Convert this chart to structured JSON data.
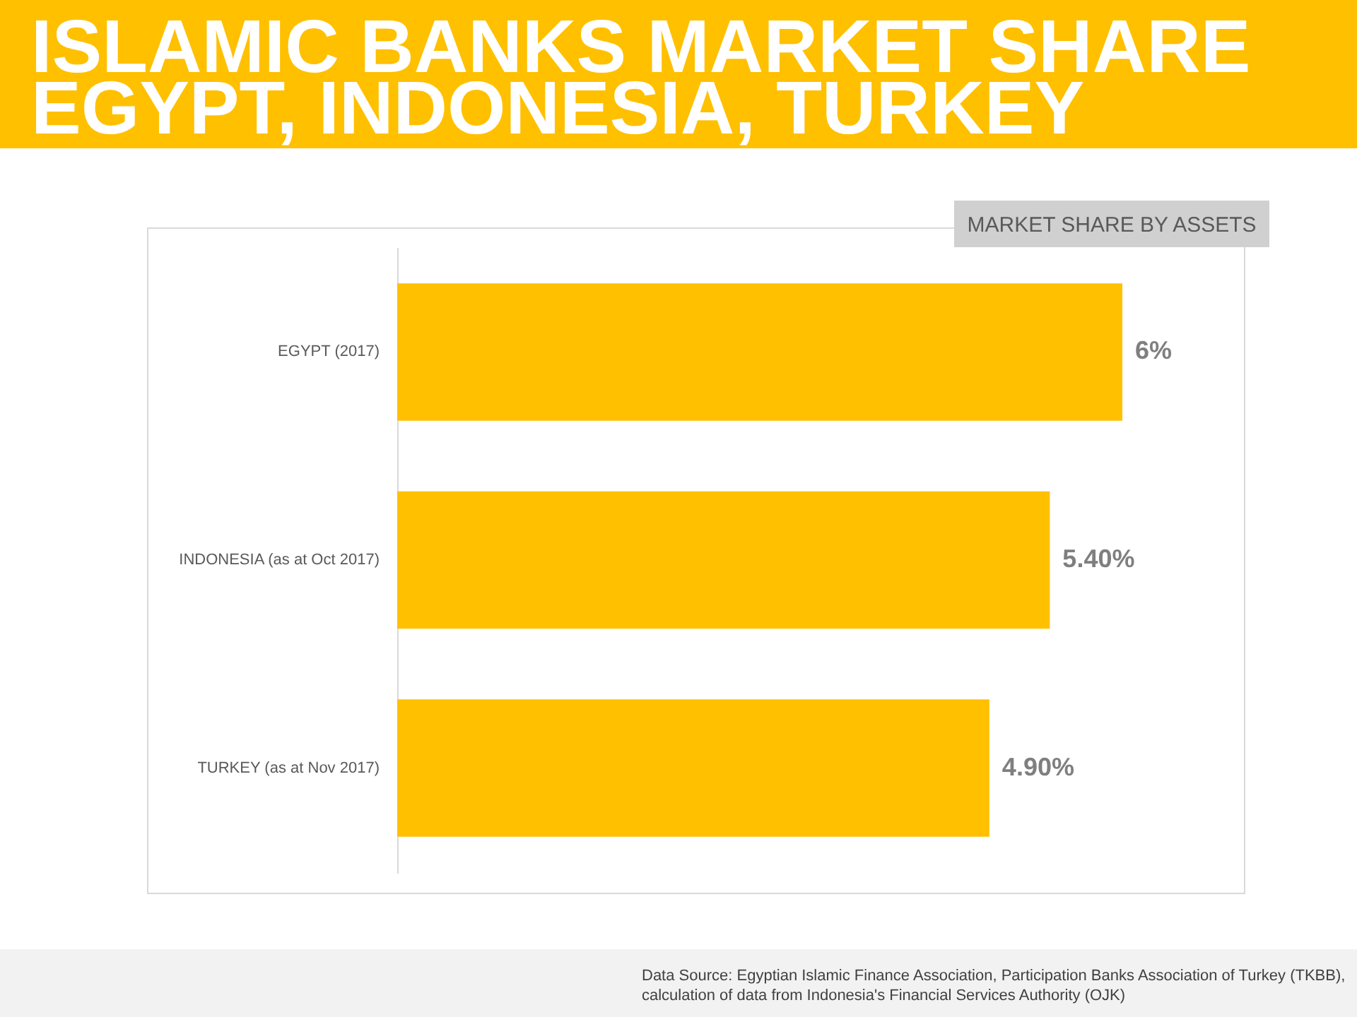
{
  "chart_data": {
    "type": "bar",
    "orientation": "horizontal",
    "title": "ISLAMIC BANKS MARKET SHARE\nEGYPT, INDONESIA, TURKEY",
    "subtitle": "MARKET SHARE BY ASSETS",
    "categories": [
      "EGYPT (2017)",
      "INDONESIA (as at Oct 2017)",
      "TURKEY (as at Nov 2017)"
    ],
    "values": [
      6,
      5.4,
      4.9
    ],
    "value_labels": [
      "6%",
      "5.40%",
      "4.90%"
    ],
    "color": "#ffc000",
    "tick_labels": "y",
    "annotations": [
      "Data Source: Egyptian Islamic Finance Association, Participation Banks Association of Turkey (TKBB),\ncalculation of data from Indonesia's Financial Services Authority (OJK)"
    ]
  }
}
